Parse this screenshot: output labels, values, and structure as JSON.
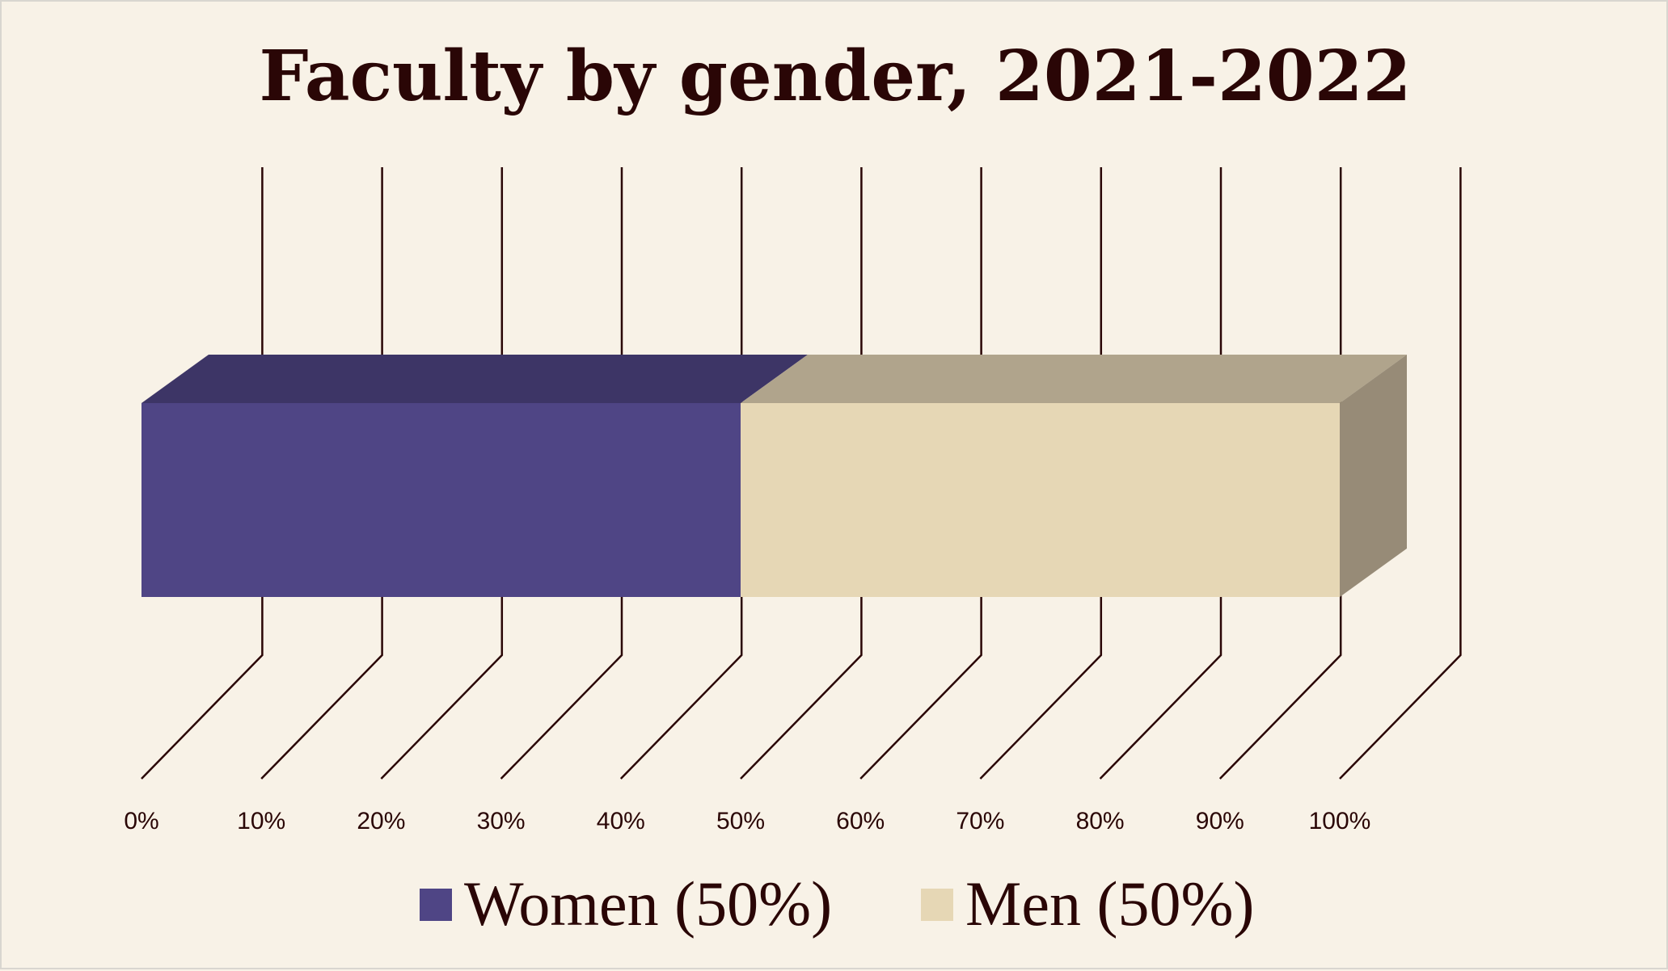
{
  "chart_data": {
    "type": "bar",
    "orientation": "horizontal",
    "stacked": true,
    "percent_stacked": true,
    "three_d": true,
    "title": "Faculty by gender, 2021-2022",
    "categories": [
      ""
    ],
    "series": [
      {
        "name": "Women (50%)",
        "values": [
          50
        ],
        "color": "#4f4585"
      },
      {
        "name": "Men (50%)",
        "values": [
          50
        ],
        "color": "#e6d7b5"
      }
    ],
    "xlim": [
      0,
      100
    ],
    "x_ticks": [
      "0%",
      "10%",
      "20%",
      "30%",
      "40%",
      "50%",
      "60%",
      "70%",
      "80%",
      "90%",
      "100%"
    ],
    "grid": true,
    "legend": "bottom"
  },
  "colors": {
    "background": "#f8f2e7",
    "text": "#2a0606",
    "women_top": "#3d3566",
    "men_top": "#b0a48c",
    "men_side": "#978b77"
  }
}
